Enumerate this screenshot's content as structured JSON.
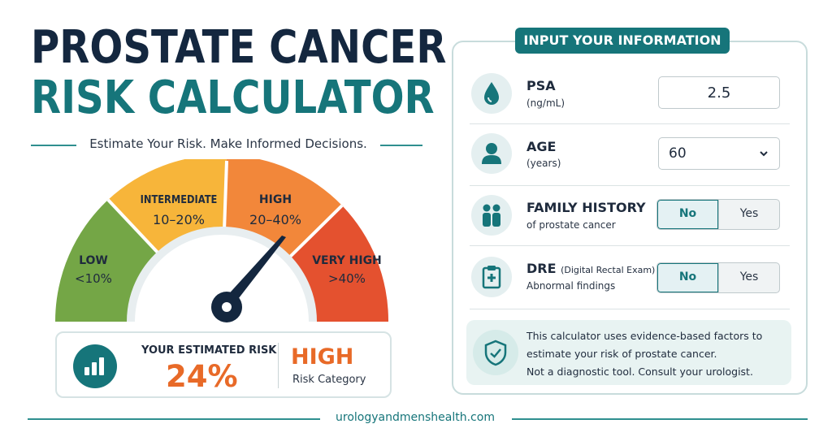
{
  "title": {
    "line1": "PROSTATE CANCER",
    "line2": "RISK CALCULATOR"
  },
  "subtitle": "Estimate Your Risk. Make Informed Decisions.",
  "gauge": {
    "segments": [
      {
        "name": "LOW",
        "range": "<10%",
        "color": "#74a646"
      },
      {
        "name": "INTERMEDIATE",
        "range": "10–20%",
        "color": "#f7b53a"
      },
      {
        "name": "HIGH",
        "range": "20–40%",
        "color": "#f2873a"
      },
      {
        "name": "VERY HIGH",
        "range": ">40%",
        "color": "#e4512f"
      }
    ],
    "needle_value_percent": 24
  },
  "result": {
    "label": "YOUR ESTIMATED RISK",
    "value": "24%",
    "category": "HIGH",
    "category_label": "Risk Category"
  },
  "panel": {
    "header": "INPUT YOUR INFORMATION",
    "psa": {
      "title": "PSA",
      "unit": "(ng/mL)",
      "value": "2.5",
      "icon": "drop-icon"
    },
    "age": {
      "title": "AGE",
      "unit": "(years)",
      "value": "60",
      "icon": "person-icon"
    },
    "family": {
      "title": "FAMILY HISTORY",
      "sub": "of prostate cancer",
      "options": [
        "No",
        "Yes"
      ],
      "selected": "No",
      "icon": "family-icon"
    },
    "dre": {
      "title": "DRE",
      "title_note": "(Digital Rectal Exam)",
      "sub": "Abnormal findings",
      "options": [
        "No",
        "Yes"
      ],
      "selected": "No",
      "icon": "clipboard-icon"
    },
    "disclaimer": {
      "line1": "This calculator uses evidence-based factors to",
      "line2": "estimate your risk of prostate cancer.",
      "line3": "Not a diagnostic tool.  Consult your urologist.",
      "icon": "shield-check-icon"
    }
  },
  "footer": "urologyandmenshealth.com",
  "colors": {
    "navy": "#14273f",
    "teal": "#16757a",
    "orange": "#e86a28"
  }
}
